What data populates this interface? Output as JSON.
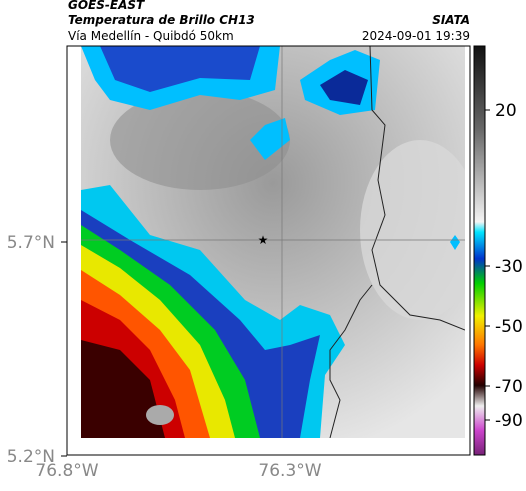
{
  "header": {
    "source": "GOES-EAST",
    "title": "Temperatura de Brillo CH13",
    "subtitle": "Vía Medellín - Quibdó 50km",
    "brand": "SIATA",
    "timestamp": "2024-09-01 19:39"
  },
  "map": {
    "lat_labels": [
      "5.7°N",
      "5.2°N"
    ],
    "lon_labels": [
      "76.8°W",
      "76.3°W"
    ]
  },
  "colorbar": {
    "ticks": [
      20,
      -30,
      -50,
      -70,
      -90
    ]
  }
}
